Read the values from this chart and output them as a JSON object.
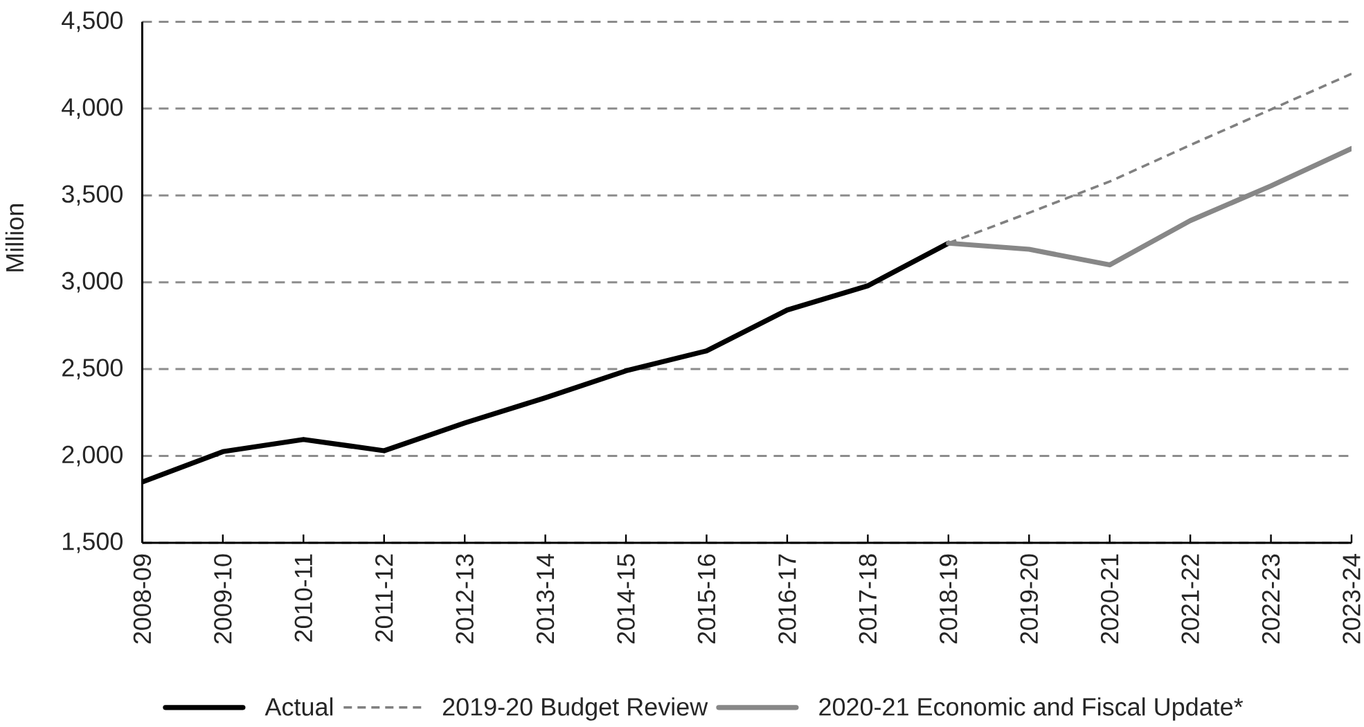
{
  "chart_data": {
    "type": "line",
    "ylabel": "Million",
    "categories": [
      "2008-09",
      "2009-10",
      "2010-11",
      "2011-12",
      "2012-13",
      "2013-14",
      "2014-15",
      "2015-16",
      "2016-17",
      "2017-18",
      "2018-19",
      "2019-20",
      "2020-21",
      "2021-22",
      "2022-23",
      "2023-24"
    ],
    "series": [
      {
        "name": "Actual",
        "color": "#000000",
        "line_style": "solid",
        "values": [
          1850,
          2025,
          2095,
          2030,
          2190,
          2335,
          2490,
          2605,
          2840,
          2980,
          3225,
          null,
          null,
          null,
          null,
          null
        ]
      },
      {
        "name": "2019-20 Budget Review",
        "color": "#808080",
        "line_style": "dashed",
        "values": [
          null,
          null,
          null,
          null,
          null,
          null,
          null,
          null,
          null,
          null,
          3225,
          3400,
          3580,
          3790,
          3995,
          4200
        ]
      },
      {
        "name": "2020-21 Economic and Fiscal Update*",
        "color": "#878787",
        "line_style": "solid",
        "values": [
          null,
          null,
          null,
          null,
          null,
          null,
          null,
          null,
          null,
          null,
          3225,
          3190,
          3100,
          3355,
          3555,
          3770
        ]
      }
    ],
    "ylim": [
      1500,
      4500
    ],
    "yticks": [
      {
        "value": 1500,
        "label": "1,500"
      },
      {
        "value": 2000,
        "label": "2,000"
      },
      {
        "value": 2500,
        "label": "2,500"
      },
      {
        "value": 3000,
        "label": "3,000"
      },
      {
        "value": 3500,
        "label": "3,500"
      },
      {
        "value": 4000,
        "label": "4,000"
      },
      {
        "value": 4500,
        "label": "4,500"
      }
    ],
    "grid": "y",
    "legend": "bottom",
    "marker": "none"
  }
}
